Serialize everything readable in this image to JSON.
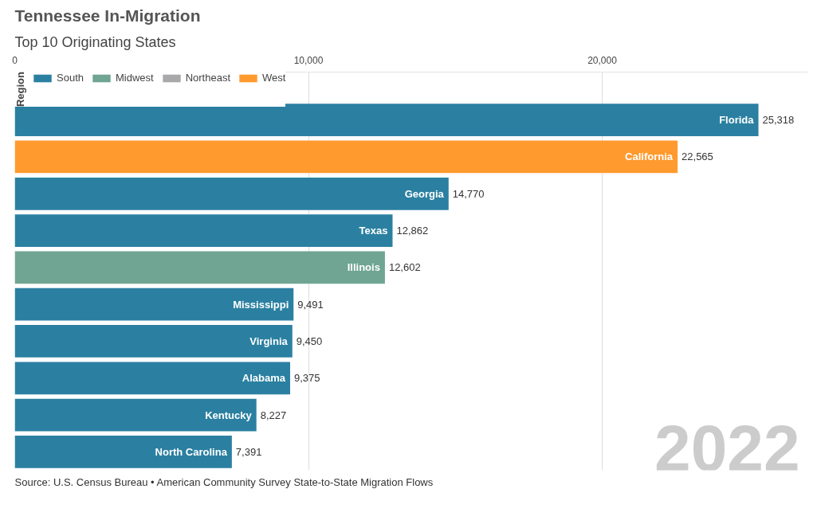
{
  "chart_data": {
    "type": "bar",
    "orientation": "horizontal",
    "stacked": true,
    "title": "Tennessee In-Migration",
    "subtitle": "Top 10 Originating States",
    "legend_title": "Region",
    "categories": [
      "Florida",
      "California",
      "Georgia",
      "Texas",
      "Illinois",
      "Mississippi",
      "Virginia",
      "Alabama",
      "Kentucky",
      "North Carolina"
    ],
    "series": [
      {
        "name": "South",
        "color": "#2b80a1",
        "values": [
          25318,
          null,
          14770,
          12862,
          null,
          9491,
          9450,
          9375,
          8227,
          7391
        ]
      },
      {
        "name": "Midwest",
        "color": "#6fa592",
        "values": [
          null,
          null,
          null,
          null,
          12602,
          null,
          null,
          null,
          null,
          null
        ]
      },
      {
        "name": "Northeast",
        "color": "#a9a9ab",
        "values": [
          null,
          null,
          null,
          null,
          null,
          null,
          null,
          null,
          null,
          null
        ]
      },
      {
        "name": "West",
        "color": "#ff9a2e",
        "values": [
          null,
          22565,
          null,
          null,
          null,
          null,
          null,
          null,
          null,
          null
        ]
      }
    ],
    "value_labels": [
      "25,318",
      "22,565",
      "14,770",
      "12,862",
      "12,602",
      "9,491",
      "9,450",
      "9,375",
      "8,227",
      "7,391"
    ],
    "xlim": [
      0,
      27000
    ],
    "xticks": [
      0,
      {
        "value": 10000,
        "label": "10,000"
      },
      {
        "value": 20000,
        "label": "20,000"
      }
    ],
    "grid": "x",
    "legend": "top left",
    "annotations": [
      "2022",
      "Source: U.S. Census Bureau • American Community Survey State-to-State Migration Flows"
    ]
  }
}
